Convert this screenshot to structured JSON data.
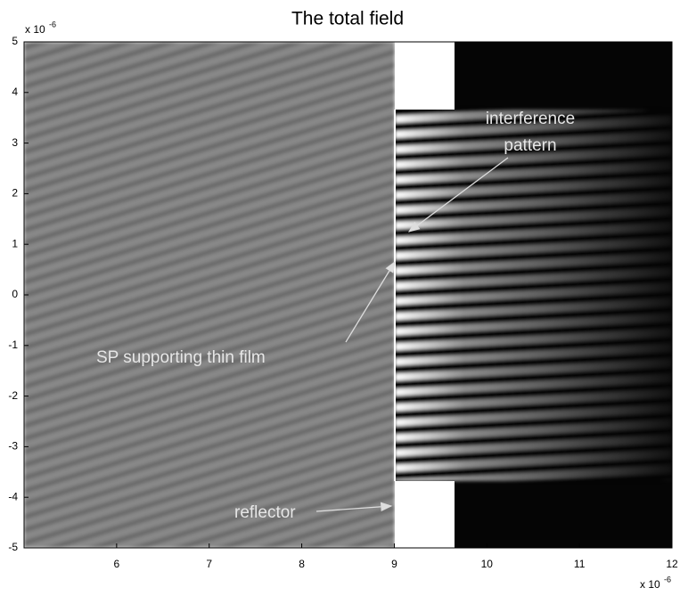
{
  "chart_data": {
    "type": "image",
    "title": "The total field",
    "xlim": [
      5,
      12
    ],
    "xticks": [
      6,
      7,
      8,
      9,
      10,
      11,
      12
    ],
    "ylim": [
      -5,
      5
    ],
    "yticks": [
      -5,
      -4,
      -3,
      -2,
      -1,
      0,
      1,
      2,
      3,
      4,
      5
    ],
    "x_exponent": {
      "base": "x 10",
      "power": "-6"
    },
    "y_exponent": {
      "base": "x 10",
      "power": "-6"
    },
    "annotations": [
      [
        "interference",
        "pattern"
      ],
      [
        "SP supporting thin film"
      ],
      [
        "reflector"
      ]
    ]
  }
}
